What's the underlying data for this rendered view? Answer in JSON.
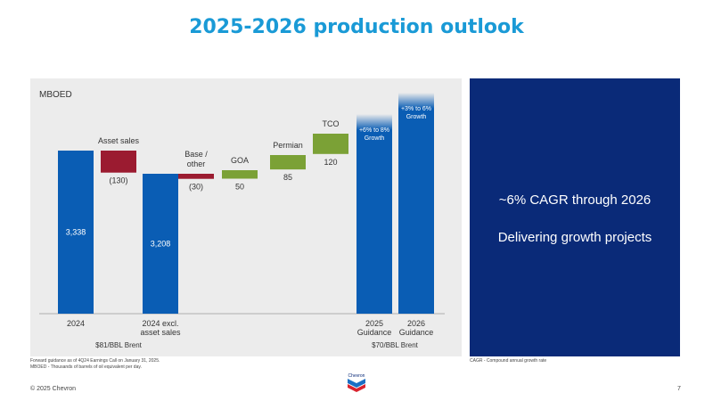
{
  "page": {
    "title": "2025-2026 production outlook",
    "unit_label": "MBOED",
    "right_panel": {
      "line1": "~6% CAGR through 2026",
      "line2": "Delivering growth projects"
    },
    "footnote1": "Forward guidance as of 4Q24 Earnings Call on January 31, 2025.",
    "footnote2": "MBOED - Thousands of barrels of oil equivalent per day.",
    "footnote_right": "CAGR - Compound annual growth rate",
    "copyright": "© 2025 Chevron",
    "page_number": "7",
    "logo_text": "Chevron"
  },
  "colors": {
    "title": "#1a9ad6",
    "total_bar": "#0a5db4",
    "negative_bar": "#9b1b30",
    "positive_bar": "#7ba136",
    "panel_bg": "#ececec",
    "right_panel_bg": "#0a2a78"
  },
  "chart_data": {
    "type": "bar",
    "subtype": "waterfall",
    "ylabel": "MBOED",
    "categories": [
      "2024",
      "Asset sales",
      "2024 excl. asset sales",
      "Base / other",
      "GOA",
      "Permian",
      "TCO",
      "2025 Guidance",
      "2026 Guidance"
    ],
    "items": [
      {
        "category": "2024",
        "kind": "total",
        "value": 3338,
        "value_label": "3,338",
        "bottom_label": "2024"
      },
      {
        "category": "Asset sales",
        "kind": "delta",
        "value": -130,
        "value_label": "(130)",
        "top_label": "Asset sales"
      },
      {
        "category": "2024 excl. asset sales",
        "kind": "total",
        "value": 3208,
        "value_label": "3,208",
        "bottom_label": "2024 excl. asset sales"
      },
      {
        "category": "Base / other",
        "kind": "delta",
        "value": -30,
        "value_label": "(30)",
        "top_label": "Base / other"
      },
      {
        "category": "GOA",
        "kind": "delta",
        "value": 50,
        "value_label": "50",
        "top_label": "GOA"
      },
      {
        "category": "Permian",
        "kind": "delta",
        "value": 85,
        "value_label": "85",
        "top_label": "Permian"
      },
      {
        "category": "TCO",
        "kind": "delta",
        "value": 120,
        "value_label": "120",
        "top_label": "TCO"
      },
      {
        "category": "2025 Guidance",
        "kind": "guidance",
        "growth_low_pct": 6,
        "growth_high_pct": 8,
        "growth_label": "+6% to 8% Growth",
        "bottom_label": "2025 Guidance"
      },
      {
        "category": "2026 Guidance",
        "kind": "guidance",
        "growth_low_pct": 3,
        "growth_high_pct": 6,
        "growth_label": "+3% to 6% Growth",
        "bottom_label": "2026 Guidance"
      }
    ],
    "price_notes": [
      {
        "text": "$81/BBL Brent",
        "under": "2024"
      },
      {
        "text": "$70/BBL Brent",
        "under": "2025 Guidance"
      }
    ]
  }
}
